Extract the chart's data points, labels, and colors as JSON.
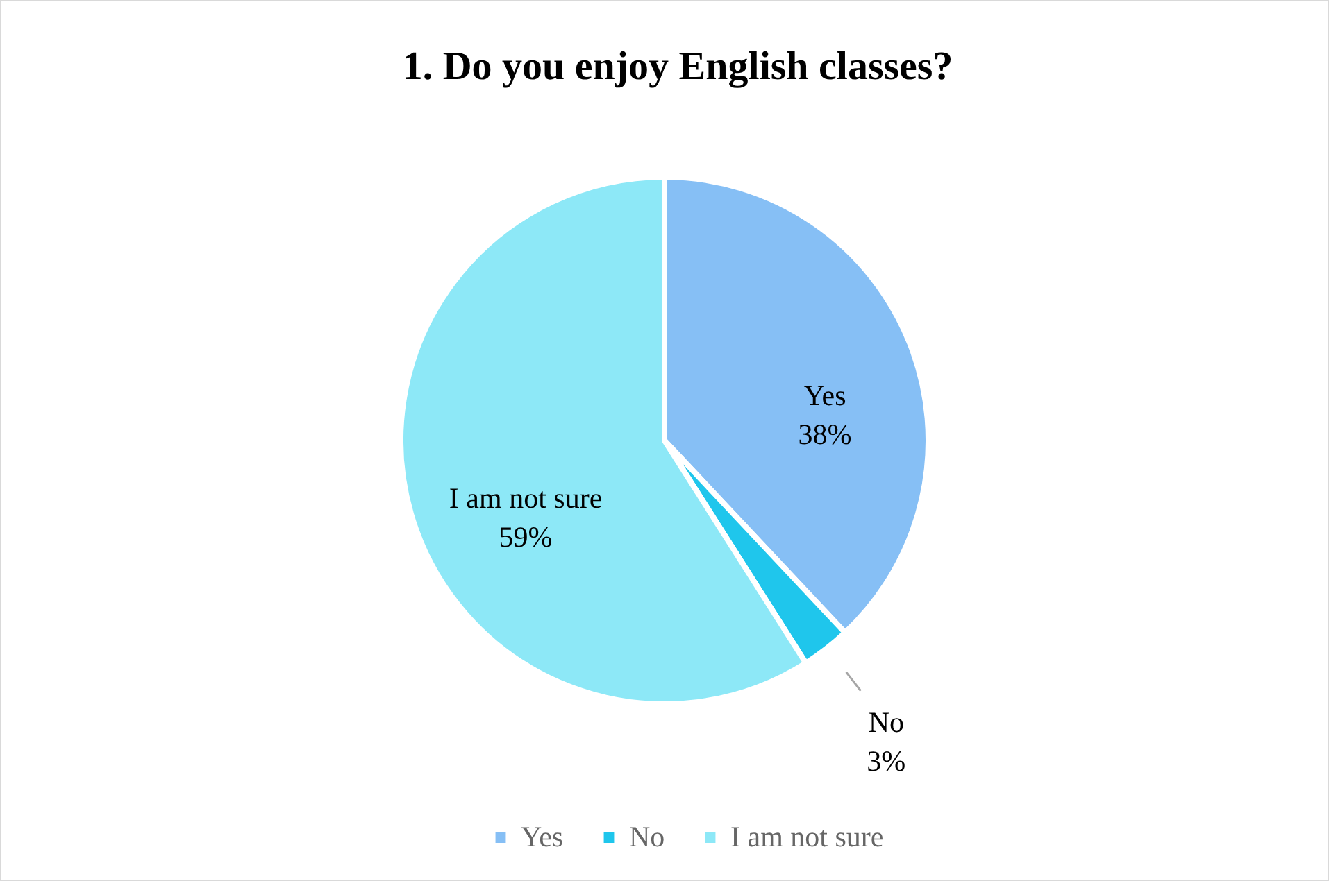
{
  "chart_data": {
    "type": "pie",
    "title": "1. Do you enjoy English classes?",
    "categories": [
      "Yes",
      "No",
      "I am not sure"
    ],
    "values": [
      38,
      3,
      59
    ],
    "colors": [
      "#86bff5",
      "#1fc6ec",
      "#8de8f7"
    ],
    "value_labels": [
      "38%",
      "3%",
      "59%"
    ],
    "legend": "bottom"
  }
}
